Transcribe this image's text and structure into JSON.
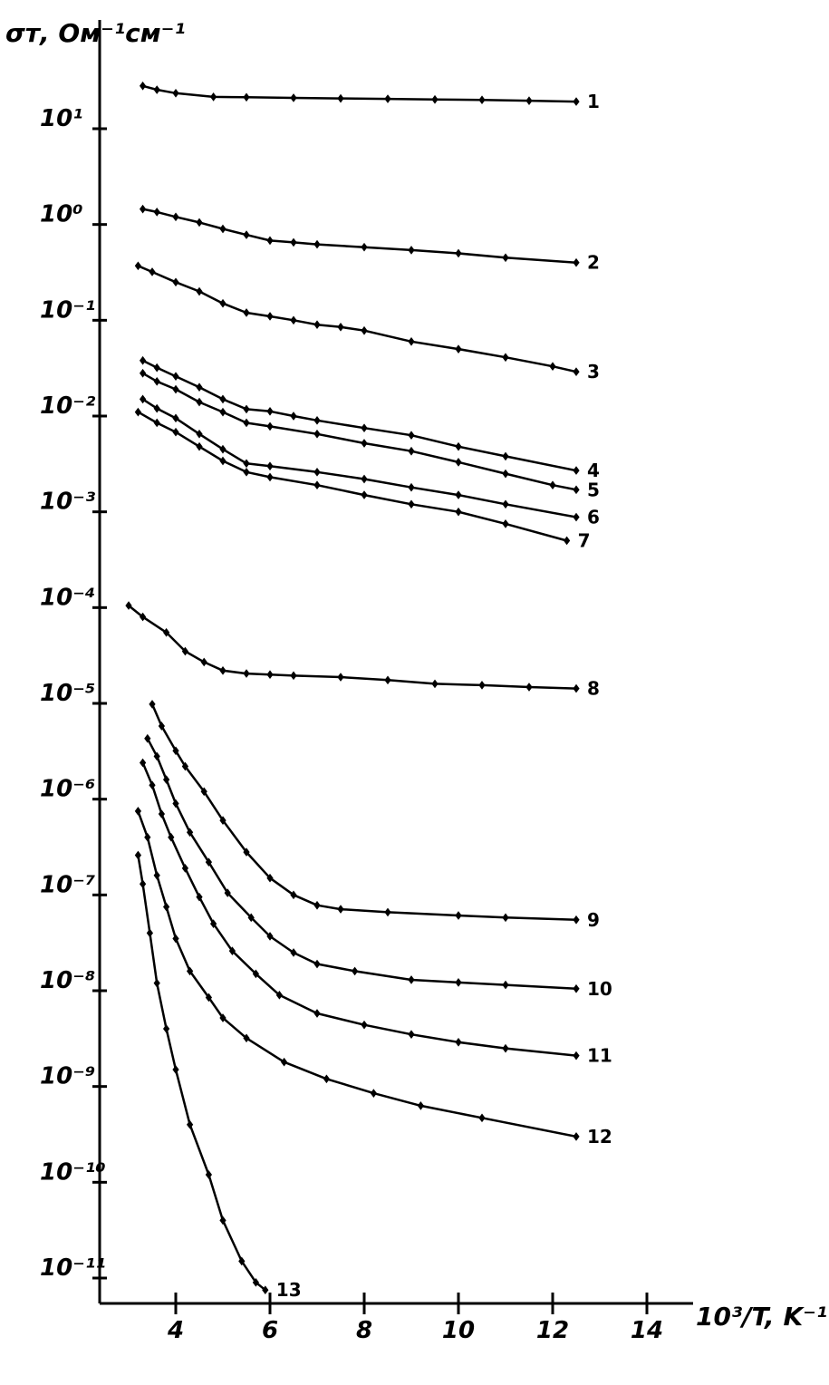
{
  "chart_data": {
    "type": "line",
    "title": "",
    "ylabel": "σт, Ом⁻¹см⁻¹",
    "xlabel": "10³/T, K⁻¹",
    "y_scale": "log",
    "ylim": [
      1e-11,
      100
    ],
    "xlim": [
      2.2,
      14.5
    ],
    "x_ticks": [
      4,
      6,
      8,
      10,
      12,
      14
    ],
    "y_ticks": [
      {
        "value": 10,
        "label": "10¹"
      },
      {
        "value": 1,
        "label": "10⁰"
      },
      {
        "value": 0.1,
        "label": "10⁻¹"
      },
      {
        "value": 0.01,
        "label": "10⁻²"
      },
      {
        "value": 0.001,
        "label": "10⁻³"
      },
      {
        "value": 0.0001,
        "label": "10⁻⁴"
      },
      {
        "value": 1e-05,
        "label": "10⁻⁵"
      },
      {
        "value": 1e-06,
        "label": "10⁻⁶"
      },
      {
        "value": 1e-07,
        "label": "10⁻⁷"
      },
      {
        "value": 1e-08,
        "label": "10⁻⁸"
      },
      {
        "value": 1e-09,
        "label": "10⁻⁹"
      },
      {
        "value": 1e-10,
        "label": "10⁻¹⁰"
      },
      {
        "value": 1e-11,
        "label": "10⁻¹¹"
      }
    ],
    "grid": false,
    "legend": "none",
    "line_color": "#000000",
    "series": [
      {
        "name": "1",
        "points": [
          [
            3.3,
            28
          ],
          [
            3.6,
            25.5
          ],
          [
            4.0,
            23.5
          ],
          [
            4.8,
            21.5
          ],
          [
            5.5,
            21.3
          ],
          [
            6.5,
            21.0
          ],
          [
            7.5,
            20.7
          ],
          [
            8.5,
            20.5
          ],
          [
            9.5,
            20.2
          ],
          [
            10.5,
            20.0
          ],
          [
            11.5,
            19.6
          ],
          [
            12.5,
            19.2
          ]
        ]
      },
      {
        "name": "2",
        "points": [
          [
            3.3,
            1.45
          ],
          [
            3.6,
            1.35
          ],
          [
            4.0,
            1.2
          ],
          [
            4.5,
            1.05
          ],
          [
            5.0,
            0.9
          ],
          [
            5.5,
            0.78
          ],
          [
            6.0,
            0.68
          ],
          [
            6.5,
            0.65
          ],
          [
            7.0,
            0.62
          ],
          [
            8.0,
            0.58
          ],
          [
            9.0,
            0.54
          ],
          [
            10.0,
            0.5
          ],
          [
            11.0,
            0.45
          ],
          [
            12.5,
            0.4
          ]
        ]
      },
      {
        "name": "3",
        "points": [
          [
            3.2,
            0.37
          ],
          [
            3.5,
            0.32
          ],
          [
            4.0,
            0.25
          ],
          [
            4.5,
            0.2
          ],
          [
            5.0,
            0.15
          ],
          [
            5.5,
            0.12
          ],
          [
            6.0,
            0.11
          ],
          [
            6.5,
            0.1
          ],
          [
            7.0,
            0.09
          ],
          [
            7.5,
            0.085
          ],
          [
            8.0,
            0.078
          ],
          [
            9.0,
            0.06
          ],
          [
            10.0,
            0.05
          ],
          [
            11.0,
            0.041
          ],
          [
            12.0,
            0.033
          ],
          [
            12.5,
            0.029
          ]
        ]
      },
      {
        "name": "4",
        "points": [
          [
            3.3,
            0.038
          ],
          [
            3.6,
            0.032
          ],
          [
            4.0,
            0.026
          ],
          [
            4.5,
            0.02
          ],
          [
            5.0,
            0.015
          ],
          [
            5.5,
            0.0118
          ],
          [
            6.0,
            0.0112
          ],
          [
            6.5,
            0.01
          ],
          [
            7.0,
            0.009
          ],
          [
            8.0,
            0.0075
          ],
          [
            9.0,
            0.0063
          ],
          [
            10.0,
            0.0048
          ],
          [
            11.0,
            0.0038
          ],
          [
            12.5,
            0.0027
          ]
        ]
      },
      {
        "name": "5",
        "points": [
          [
            3.3,
            0.028
          ],
          [
            3.6,
            0.023
          ],
          [
            4.0,
            0.019
          ],
          [
            4.5,
            0.014
          ],
          [
            5.0,
            0.011
          ],
          [
            5.5,
            0.0085
          ],
          [
            6.0,
            0.0078
          ],
          [
            7.0,
            0.0065
          ],
          [
            8.0,
            0.0052
          ],
          [
            9.0,
            0.0043
          ],
          [
            10.0,
            0.0033
          ],
          [
            11.0,
            0.0025
          ],
          [
            12.0,
            0.0019
          ],
          [
            12.5,
            0.0017
          ]
        ]
      },
      {
        "name": "6",
        "points": [
          [
            3.3,
            0.015
          ],
          [
            3.6,
            0.012
          ],
          [
            4.0,
            0.0095
          ],
          [
            4.5,
            0.0065
          ],
          [
            5.0,
            0.0045
          ],
          [
            5.5,
            0.0032
          ],
          [
            6.0,
            0.003
          ],
          [
            7.0,
            0.0026
          ],
          [
            8.0,
            0.0022
          ],
          [
            9.0,
            0.0018
          ],
          [
            10.0,
            0.0015
          ],
          [
            11.0,
            0.0012
          ],
          [
            12.5,
            0.00088
          ]
        ]
      },
      {
        "name": "7",
        "points": [
          [
            3.2,
            0.011
          ],
          [
            3.6,
            0.0085
          ],
          [
            4.0,
            0.0068
          ],
          [
            4.5,
            0.0048
          ],
          [
            5.0,
            0.0034
          ],
          [
            5.5,
            0.0026
          ],
          [
            6.0,
            0.0023
          ],
          [
            7.0,
            0.0019
          ],
          [
            8.0,
            0.0015
          ],
          [
            9.0,
            0.0012
          ],
          [
            10.0,
            0.001
          ],
          [
            11.0,
            0.00075
          ],
          [
            12.3,
            0.0005
          ]
        ]
      },
      {
        "name": "8",
        "points": [
          [
            3.0,
            0.000105
          ],
          [
            3.3,
            8e-05
          ],
          [
            3.8,
            5.5e-05
          ],
          [
            4.2,
            3.5e-05
          ],
          [
            4.6,
            2.7e-05
          ],
          [
            5.0,
            2.2e-05
          ],
          [
            5.5,
            2.05e-05
          ],
          [
            6.0,
            2e-05
          ],
          [
            6.5,
            1.95e-05
          ],
          [
            7.5,
            1.88e-05
          ],
          [
            8.5,
            1.75e-05
          ],
          [
            9.5,
            1.6e-05
          ],
          [
            10.5,
            1.55e-05
          ],
          [
            11.5,
            1.48e-05
          ],
          [
            12.5,
            1.43e-05
          ]
        ]
      },
      {
        "name": "9",
        "points": [
          [
            3.5,
            9.8e-06
          ],
          [
            3.7,
            5.8e-06
          ],
          [
            4.0,
            3.2e-06
          ],
          [
            4.2,
            2.2e-06
          ],
          [
            4.6,
            1.2e-06
          ],
          [
            5.0,
            6e-07
          ],
          [
            5.5,
            2.8e-07
          ],
          [
            6.0,
            1.5e-07
          ],
          [
            6.5,
            1e-07
          ],
          [
            7.0,
            7.8e-08
          ],
          [
            7.5,
            7.1e-08
          ],
          [
            8.5,
            6.6e-08
          ],
          [
            10.0,
            6.1e-08
          ],
          [
            11.0,
            5.8e-08
          ],
          [
            12.5,
            5.5e-08
          ]
        ]
      },
      {
        "name": "10",
        "points": [
          [
            3.4,
            4.3e-06
          ],
          [
            3.6,
            2.8e-06
          ],
          [
            3.8,
            1.6e-06
          ],
          [
            4.0,
            9e-07
          ],
          [
            4.3,
            4.5e-07
          ],
          [
            4.7,
            2.2e-07
          ],
          [
            5.1,
            1.05e-07
          ],
          [
            5.6,
            5.8e-08
          ],
          [
            6.0,
            3.7e-08
          ],
          [
            6.5,
            2.5e-08
          ],
          [
            7.0,
            1.9e-08
          ],
          [
            7.8,
            1.6e-08
          ],
          [
            9.0,
            1.3e-08
          ],
          [
            10.0,
            1.22e-08
          ],
          [
            11.0,
            1.15e-08
          ],
          [
            12.5,
            1.05e-08
          ]
        ]
      },
      {
        "name": "11",
        "points": [
          [
            3.3,
            2.4e-06
          ],
          [
            3.5,
            1.4e-06
          ],
          [
            3.7,
            7e-07
          ],
          [
            3.9,
            4e-07
          ],
          [
            4.2,
            1.9e-07
          ],
          [
            4.5,
            9.5e-08
          ],
          [
            4.8,
            5e-08
          ],
          [
            5.2,
            2.6e-08
          ],
          [
            5.7,
            1.5e-08
          ],
          [
            6.2,
            9e-09
          ],
          [
            7.0,
            5.8e-09
          ],
          [
            8.0,
            4.4e-09
          ],
          [
            9.0,
            3.5e-09
          ],
          [
            10.0,
            2.9e-09
          ],
          [
            11.0,
            2.5e-09
          ],
          [
            12.5,
            2.1e-09
          ]
        ]
      },
      {
        "name": "12",
        "points": [
          [
            3.2,
            7.5e-07
          ],
          [
            3.4,
            4e-07
          ],
          [
            3.6,
            1.6e-07
          ],
          [
            3.8,
            7.5e-08
          ],
          [
            4.0,
            3.5e-08
          ],
          [
            4.3,
            1.6e-08
          ],
          [
            4.7,
            8.5e-09
          ],
          [
            5.0,
            5.2e-09
          ],
          [
            5.5,
            3.2e-09
          ],
          [
            6.3,
            1.8e-09
          ],
          [
            7.2,
            1.2e-09
          ],
          [
            8.2,
            8.5e-10
          ],
          [
            9.2,
            6.3e-10
          ],
          [
            10.5,
            4.7e-10
          ],
          [
            12.5,
            3e-10
          ]
        ]
      },
      {
        "name": "13",
        "points": [
          [
            3.2,
            2.6e-07
          ],
          [
            3.3,
            1.3e-07
          ],
          [
            3.45,
            4e-08
          ],
          [
            3.6,
            1.2e-08
          ],
          [
            3.8,
            4e-09
          ],
          [
            4.0,
            1.5e-09
          ],
          [
            4.3,
            4e-10
          ],
          [
            4.7,
            1.2e-10
          ],
          [
            5.0,
            4e-11
          ],
          [
            5.4,
            1.5e-11
          ],
          [
            5.7,
            9e-12
          ],
          [
            5.9,
            7.5e-12
          ]
        ]
      }
    ]
  }
}
